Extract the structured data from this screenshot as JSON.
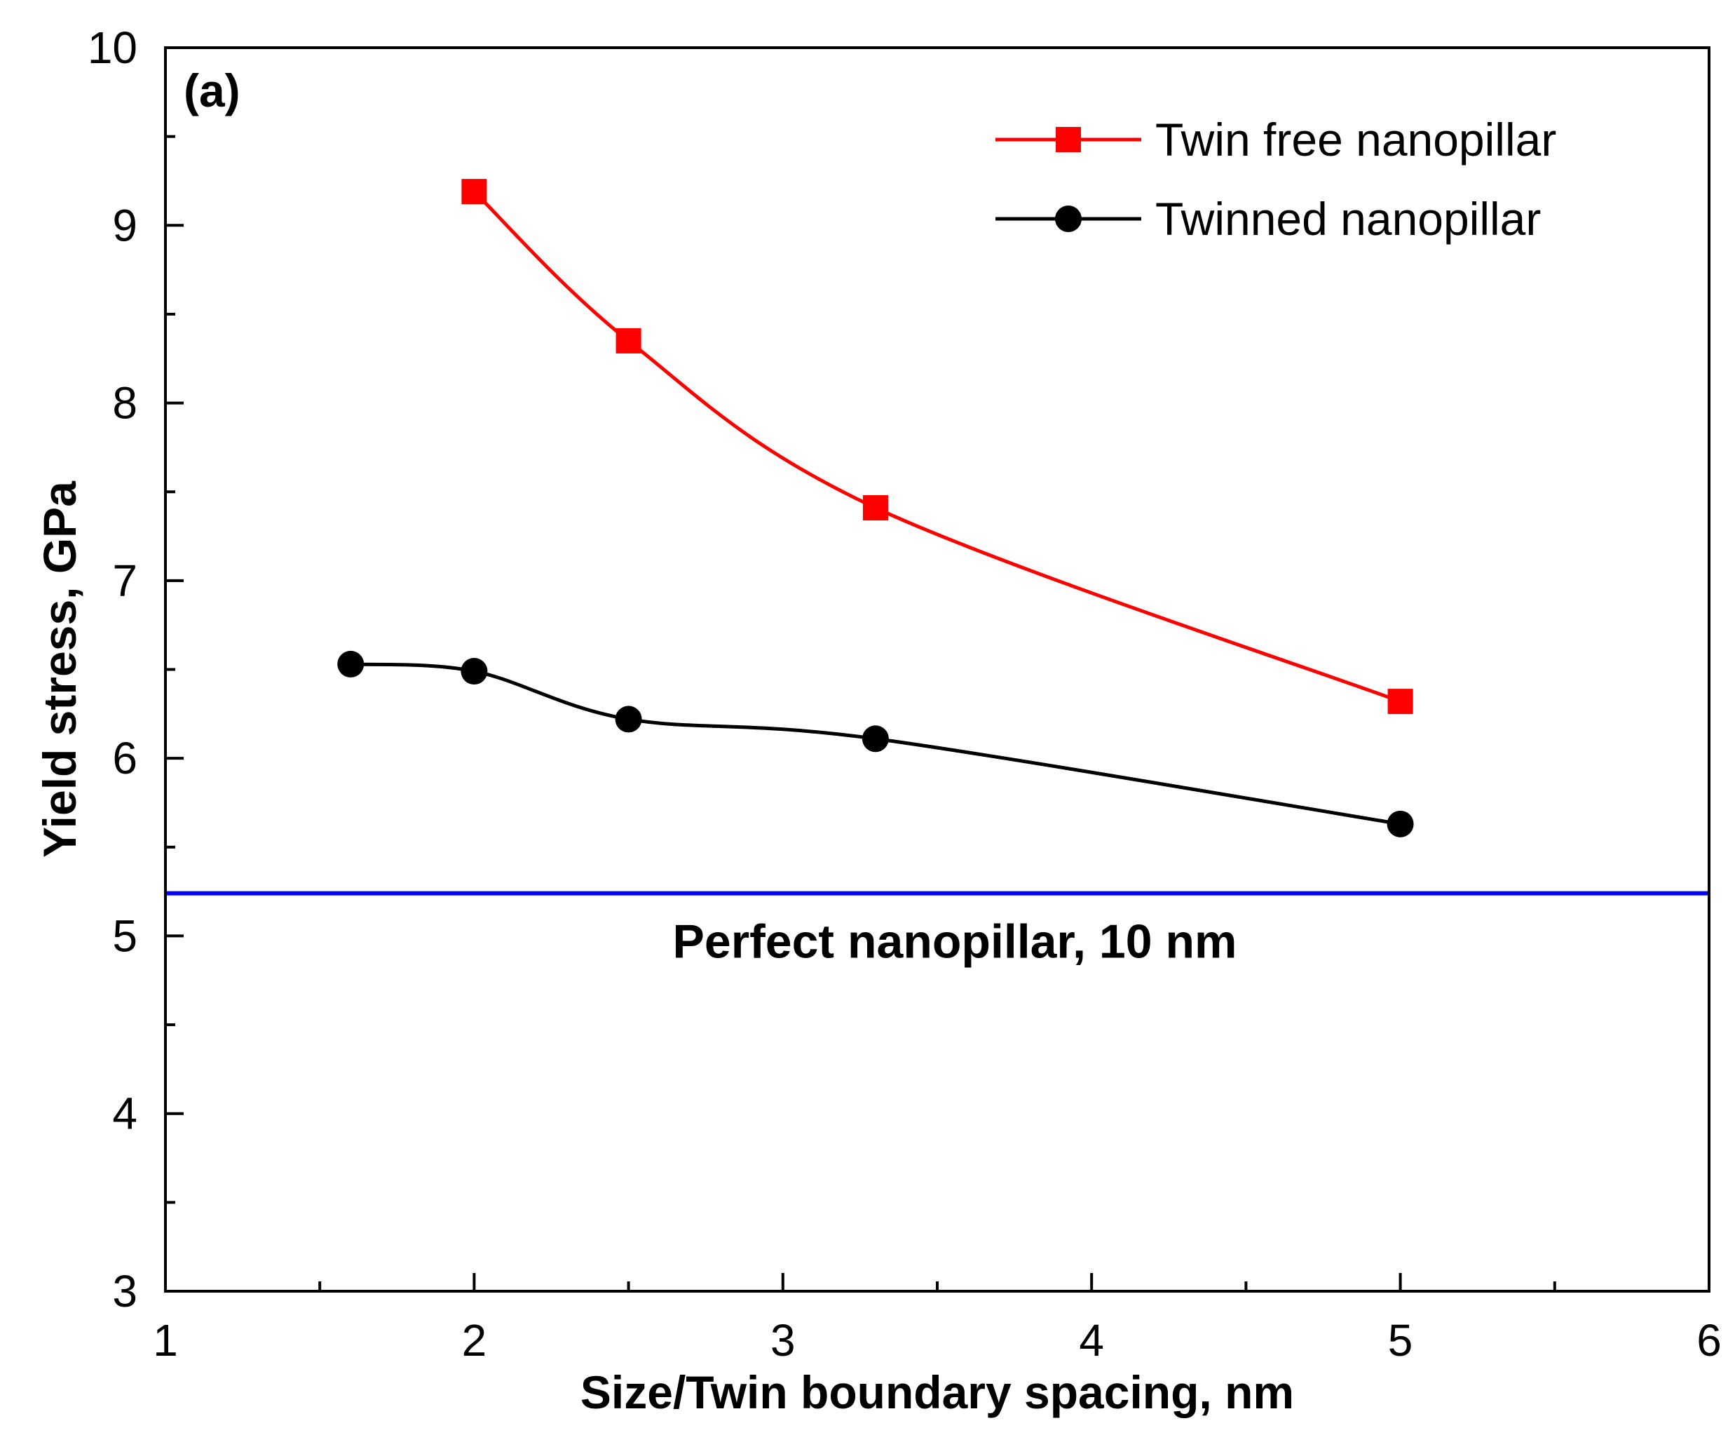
{
  "chart_data": {
    "type": "line",
    "panel_label": "(a)",
    "xlabel": "Size/Twin boundary spacing, nm",
    "ylabel": "Yield stress, GPa",
    "xlim": [
      1,
      6
    ],
    "ylim": [
      3,
      10
    ],
    "x_ticks": [
      1,
      2,
      3,
      4,
      5,
      6
    ],
    "y_ticks": [
      3,
      4,
      5,
      6,
      7,
      8,
      9,
      10
    ],
    "legend_position": "top-right",
    "series": [
      {
        "name": "Twin free nanopillar",
        "color": "#ff0000",
        "marker": "square",
        "x": [
          2.0,
          2.5,
          3.3,
          5.0
        ],
        "y": [
          9.19,
          8.35,
          7.41,
          6.32
        ]
      },
      {
        "name": "Twinned nanopillar",
        "color": "#000000",
        "marker": "circle",
        "x": [
          1.6,
          2.0,
          2.5,
          3.3,
          5.0
        ],
        "y": [
          6.53,
          6.49,
          6.22,
          6.11,
          5.63
        ]
      }
    ],
    "reference_line": {
      "label": "Perfect nanopillar, 10 nm",
      "y": 5.24,
      "color": "#0000ff"
    }
  }
}
